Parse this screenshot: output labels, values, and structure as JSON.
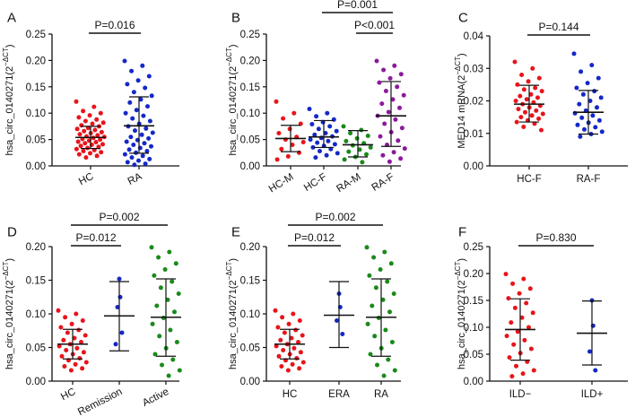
{
  "colors": {
    "red": "#e8141b",
    "blue": "#1428c8",
    "green": "#1a8a1a",
    "purple": "#8b1a9b",
    "black": "#111111"
  },
  "chart_data": [
    {
      "panel": "A",
      "type": "scatter",
      "ylabel": "hsa_circ_0140271(2^{−ΔCT})",
      "ylim": [
        0,
        0.25
      ],
      "yticks": [
        "0.00",
        "0.05",
        "0.10",
        "0.15",
        "0.20",
        "0.25"
      ],
      "categories": [
        "HC",
        "RA"
      ],
      "groups": [
        {
          "name": "HC",
          "color": "red",
          "mean": 0.054,
          "sd_low": 0.033,
          "sd_high": 0.075,
          "points": [
            0.122,
            0.112,
            0.104,
            0.1,
            0.096,
            0.092,
            0.088,
            0.085,
            0.082,
            0.08,
            0.077,
            0.075,
            0.072,
            0.07,
            0.068,
            0.066,
            0.064,
            0.062,
            0.06,
            0.058,
            0.056,
            0.055,
            0.053,
            0.051,
            0.05,
            0.048,
            0.046,
            0.045,
            0.043,
            0.041,
            0.04,
            0.038,
            0.036,
            0.034,
            0.032,
            0.03,
            0.028,
            0.026,
            0.024,
            0.022,
            0.019,
            0.016
          ]
        },
        {
          "name": "RA",
          "color": "blue",
          "mean": 0.076,
          "sd_low": 0.024,
          "sd_high": 0.131,
          "points": [
            0.199,
            0.19,
            0.18,
            0.17,
            0.162,
            0.155,
            0.148,
            0.14,
            0.133,
            0.126,
            0.12,
            0.113,
            0.106,
            0.1,
            0.095,
            0.09,
            0.085,
            0.08,
            0.075,
            0.071,
            0.067,
            0.063,
            0.059,
            0.055,
            0.052,
            0.049,
            0.046,
            0.043,
            0.04,
            0.037,
            0.034,
            0.031,
            0.028,
            0.025,
            0.022,
            0.019,
            0.016,
            0.013,
            0.01,
            0.007,
            0.004,
            0.002
          ]
        }
      ],
      "comparisons": [
        {
          "label": "P=0.016",
          "from": 0,
          "to": 1,
          "level": 0
        }
      ]
    },
    {
      "panel": "B",
      "type": "scatter",
      "ylabel": "hsa_circ_0140271(2^{−ΔCT})",
      "ylim": [
        0,
        0.25
      ],
      "yticks": [
        "0.00",
        "0.05",
        "0.10",
        "0.15",
        "0.20",
        "0.25"
      ],
      "categories": [
        "HC-M",
        "HC-F",
        "RA-M",
        "RA-F"
      ],
      "groups": [
        {
          "name": "HC-M",
          "color": "red",
          "mean": 0.052,
          "sd_low": 0.027,
          "sd_high": 0.077,
          "points": [
            0.122,
            0.1,
            0.09,
            0.08,
            0.07,
            0.062,
            0.055,
            0.05,
            0.045,
            0.04,
            0.032,
            0.025,
            0.018,
            0.012
          ]
        },
        {
          "name": "HC-F",
          "color": "blue",
          "mean": 0.055,
          "sd_low": 0.035,
          "sd_high": 0.086,
          "points": [
            0.108,
            0.1,
            0.094,
            0.088,
            0.083,
            0.079,
            0.075,
            0.07,
            0.066,
            0.062,
            0.059,
            0.056,
            0.053,
            0.05,
            0.047,
            0.044,
            0.041,
            0.038,
            0.035,
            0.032,
            0.028,
            0.024,
            0.02,
            0.016
          ]
        },
        {
          "name": "RA-M",
          "color": "green",
          "mean": 0.04,
          "sd_low": 0.017,
          "sd_high": 0.067,
          "points": [
            0.075,
            0.068,
            0.062,
            0.057,
            0.052,
            0.047,
            0.043,
            0.039,
            0.035,
            0.031,
            0.027,
            0.022,
            0.017,
            0.012,
            0.007
          ]
        },
        {
          "name": "RA-F",
          "color": "purple",
          "mean": 0.095,
          "sd_low": 0.037,
          "sd_high": 0.16,
          "points": [
            0.199,
            0.19,
            0.182,
            0.174,
            0.166,
            0.158,
            0.15,
            0.142,
            0.134,
            0.126,
            0.118,
            0.11,
            0.102,
            0.095,
            0.088,
            0.08,
            0.072,
            0.064,
            0.056,
            0.048,
            0.04,
            0.033,
            0.026,
            0.02,
            0.014,
            0.008
          ]
        }
      ],
      "comparisons": [
        {
          "label": "P=0.001",
          "from": 1,
          "to": 3,
          "level": 1
        },
        {
          "label": "P<0.001",
          "from": 2,
          "to": 3,
          "level": 0
        }
      ]
    },
    {
      "panel": "C",
      "type": "scatter",
      "ylabel": "MED14 mRNA(2^{−ΔCT})",
      "ylim": [
        0,
        0.04
      ],
      "yticks": [
        "0.00",
        "0.01",
        "0.02",
        "0.03",
        "0.04"
      ],
      "categories": [
        "HC-F",
        "RA-F"
      ],
      "groups": [
        {
          "name": "HC-F",
          "color": "red",
          "mean": 0.019,
          "sd_low": 0.0135,
          "sd_high": 0.0248,
          "points": [
            0.032,
            0.03,
            0.028,
            0.027,
            0.026,
            0.025,
            0.024,
            0.0235,
            0.023,
            0.022,
            0.0215,
            0.021,
            0.0205,
            0.02,
            0.0195,
            0.019,
            0.0185,
            0.018,
            0.0175,
            0.017,
            0.0165,
            0.016,
            0.0155,
            0.015,
            0.0145,
            0.014,
            0.0135,
            0.013,
            0.012,
            0.011
          ]
        },
        {
          "name": "RA-F",
          "color": "blue",
          "mean": 0.0165,
          "sd_low": 0.0098,
          "sd_high": 0.0232,
          "points": [
            0.0345,
            0.031,
            0.029,
            0.027,
            0.0255,
            0.024,
            0.023,
            0.022,
            0.021,
            0.02,
            0.019,
            0.018,
            0.017,
            0.0162,
            0.0155,
            0.0148,
            0.014,
            0.0133,
            0.0126,
            0.0119,
            0.0112,
            0.0105,
            0.0098,
            0.009
          ]
        }
      ],
      "comparisons": [
        {
          "label": "P=0.144",
          "from": 0,
          "to": 1,
          "level": 0
        }
      ]
    },
    {
      "panel": "D",
      "type": "scatter",
      "ylabel": "hsa_circ_0140271(2^{−ΔCT})",
      "ylim": [
        0,
        0.2
      ],
      "yticks": [
        "0.00",
        "0.05",
        "0.10",
        "0.15",
        "0.20"
      ],
      "categories": [
        "HC",
        "Remission",
        "Active"
      ],
      "groups": [
        {
          "name": "HC",
          "color": "red",
          "mean": 0.055,
          "sd_low": 0.033,
          "sd_high": 0.077,
          "points": [
            0.105,
            0.1,
            0.095,
            0.09,
            0.085,
            0.08,
            0.076,
            0.072,
            0.068,
            0.064,
            0.061,
            0.058,
            0.055,
            0.052,
            0.049,
            0.046,
            0.043,
            0.04,
            0.037,
            0.034,
            0.031,
            0.028,
            0.025,
            0.022,
            0.019,
            0.016
          ]
        },
        {
          "name": "Remission",
          "color": "blue",
          "mean": 0.097,
          "sd_low": 0.045,
          "sd_high": 0.148,
          "points": [
            0.152,
            0.125,
            0.11,
            0.072,
            0.055
          ]
        },
        {
          "name": "Active",
          "color": "green",
          "mean": 0.095,
          "sd_low": 0.037,
          "sd_high": 0.152,
          "points": [
            0.199,
            0.192,
            0.184,
            0.175,
            0.166,
            0.157,
            0.148,
            0.139,
            0.13,
            0.121,
            0.112,
            0.103,
            0.094,
            0.085,
            0.076,
            0.067,
            0.058,
            0.049,
            0.04,
            0.032,
            0.024,
            0.016,
            0.008
          ]
        }
      ],
      "comparisons": [
        {
          "label": "P=0.002",
          "from": 0,
          "to": 2,
          "level": 1
        },
        {
          "label": "P=0.012",
          "from": 0,
          "to": 1,
          "level": 0
        }
      ]
    },
    {
      "panel": "E",
      "type": "scatter",
      "ylabel": "hsa_circ_0140271(2^{−ΔCT})",
      "ylim": [
        0,
        0.2
      ],
      "yticks": [
        "0.00",
        "0.05",
        "0.10",
        "0.15",
        "0.20"
      ],
      "categories": [
        "HC",
        "ERA",
        "RA"
      ],
      "groups": [
        {
          "name": "HC",
          "color": "red",
          "mean": 0.055,
          "sd_low": 0.033,
          "sd_high": 0.077,
          "points": [
            0.105,
            0.1,
            0.095,
            0.09,
            0.085,
            0.08,
            0.076,
            0.072,
            0.068,
            0.064,
            0.061,
            0.058,
            0.055,
            0.052,
            0.049,
            0.046,
            0.043,
            0.04,
            0.037,
            0.034,
            0.031,
            0.028,
            0.025,
            0.022,
            0.019,
            0.016
          ]
        },
        {
          "name": "ERA",
          "color": "blue",
          "mean": 0.098,
          "sd_low": 0.05,
          "sd_high": 0.148,
          "points": [
            0.13,
            0.11,
            0.09,
            0.07
          ]
        },
        {
          "name": "RA",
          "color": "green",
          "mean": 0.095,
          "sd_low": 0.037,
          "sd_high": 0.152,
          "points": [
            0.199,
            0.192,
            0.184,
            0.175,
            0.166,
            0.157,
            0.148,
            0.139,
            0.13,
            0.121,
            0.112,
            0.103,
            0.094,
            0.085,
            0.076,
            0.067,
            0.058,
            0.049,
            0.04,
            0.032,
            0.024,
            0.016,
            0.008
          ]
        }
      ],
      "comparisons": [
        {
          "label": "P=0.002",
          "from": 0,
          "to": 2,
          "level": 1
        },
        {
          "label": "P=0.012",
          "from": 0,
          "to": 1,
          "level": 0
        }
      ]
    },
    {
      "panel": "F",
      "type": "scatter",
      "ylabel": "hsa_circ_0140271(2^{−ΔCT})",
      "ylim": [
        0,
        0.25
      ],
      "yticks": [
        "0.00",
        "0.05",
        "0.10",
        "0.15",
        "0.20",
        "0.25"
      ],
      "categories": [
        "ILD−",
        "ILD+"
      ],
      "groups": [
        {
          "name": "ILD−",
          "color": "red",
          "mean": 0.096,
          "sd_low": 0.039,
          "sd_high": 0.153,
          "points": [
            0.199,
            0.19,
            0.181,
            0.172,
            0.163,
            0.154,
            0.145,
            0.136,
            0.127,
            0.118,
            0.109,
            0.1,
            0.092,
            0.084,
            0.076,
            0.068,
            0.06,
            0.052,
            0.044,
            0.036,
            0.028,
            0.02,
            0.014,
            0.009
          ]
        },
        {
          "name": "ILD+",
          "color": "blue",
          "mean": 0.089,
          "sd_low": 0.03,
          "sd_high": 0.149,
          "points": [
            0.15,
            0.103,
            0.055,
            0.02
          ]
        }
      ],
      "comparisons": [
        {
          "label": "P=0.830",
          "from": 0,
          "to": 1,
          "level": 0
        }
      ]
    }
  ]
}
